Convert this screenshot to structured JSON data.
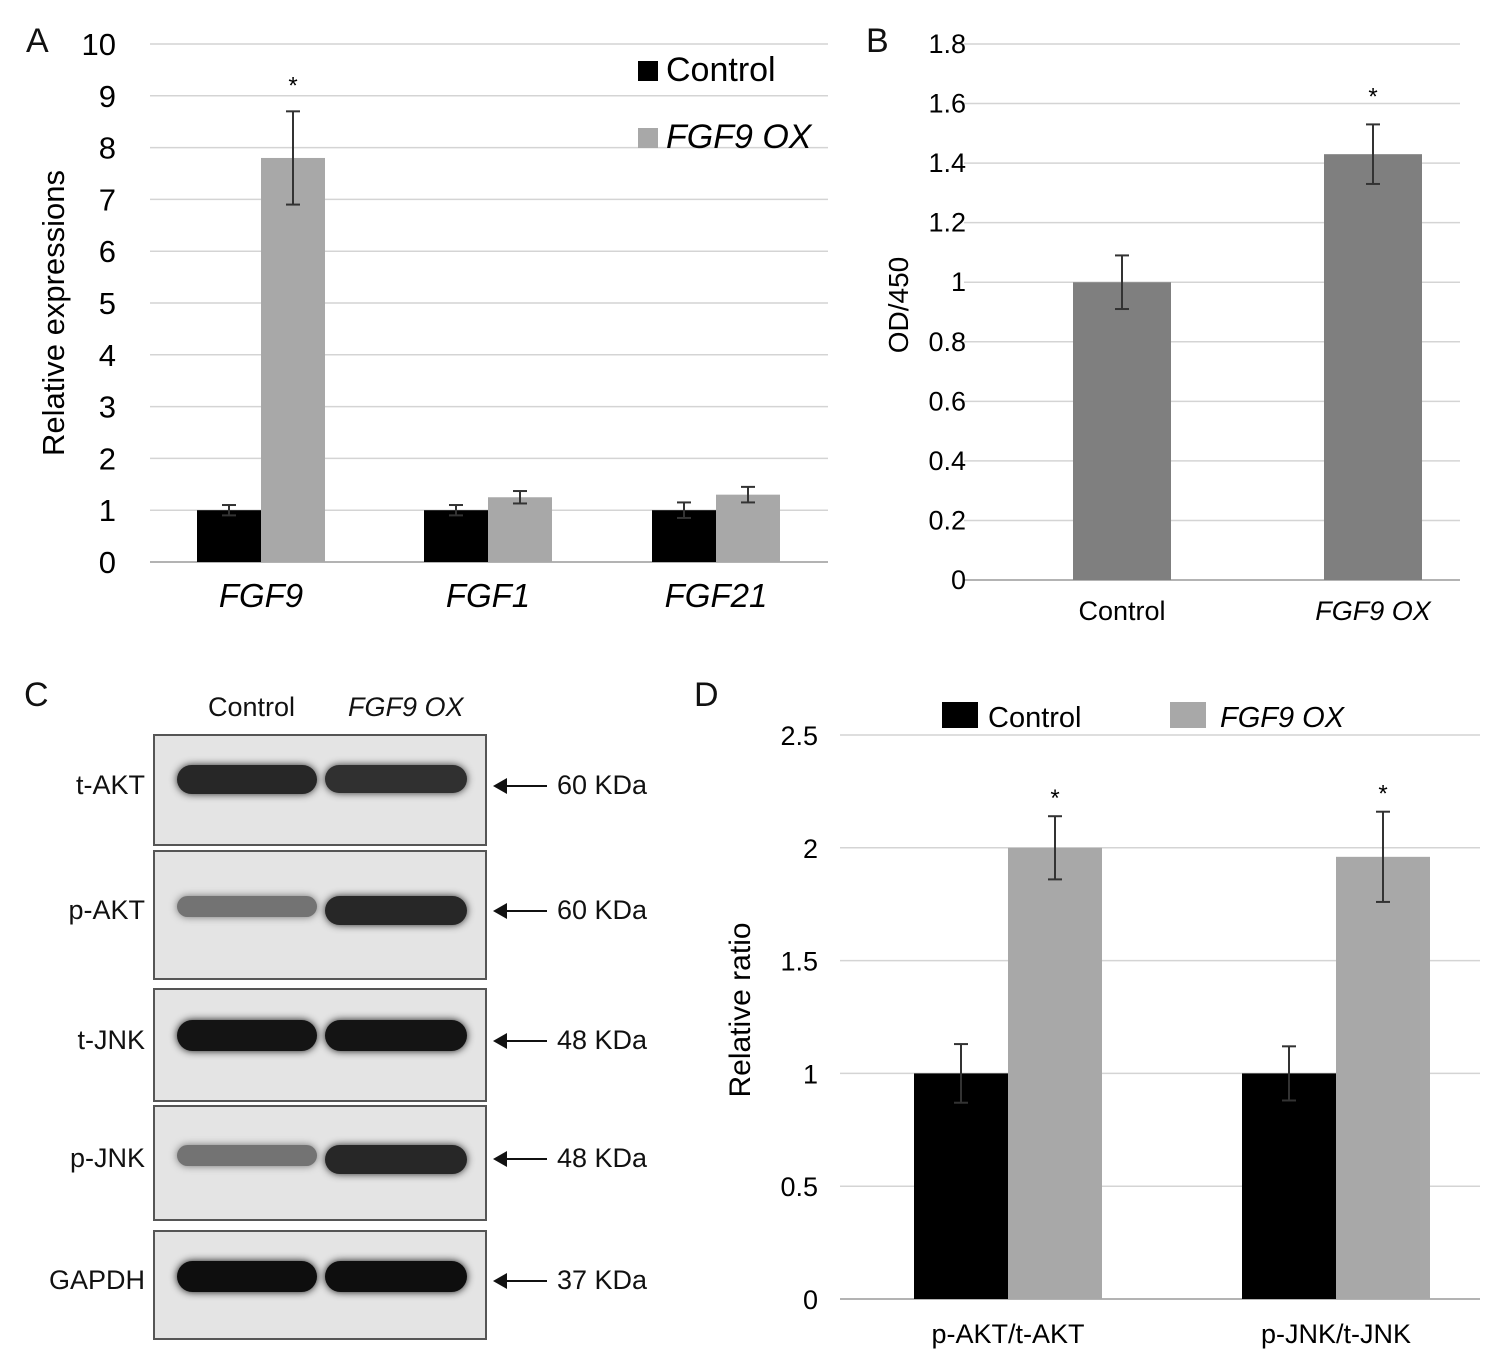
{
  "colors": {
    "control": "#000000",
    "ox": "#a8a8a8",
    "panel_b_bar": "#7f7f7f",
    "grid": "#d4d4d4",
    "error": "#333333"
  },
  "significance_marker": "*",
  "chart_data": [
    {
      "panel": "A",
      "type": "bar",
      "ylabel": "Relative  expressions",
      "ylim": [
        0,
        10
      ],
      "yticks": [
        "0",
        "1",
        "2",
        "3",
        "4",
        "5",
        "6",
        "7",
        "8",
        "9",
        "10"
      ],
      "categories": [
        "FGF9",
        "FGF1",
        "FGF21"
      ],
      "legend": {
        "placement": "top-right",
        "entries": [
          "Control",
          "FGF9 OX"
        ]
      },
      "series": [
        {
          "name": "Control",
          "values": [
            1.0,
            1.0,
            1.0
          ],
          "errors": [
            0.1,
            0.1,
            0.15
          ]
        },
        {
          "name": "FGF9 OX",
          "values": [
            7.8,
            1.25,
            1.3
          ],
          "errors": [
            0.9,
            0.12,
            0.15
          ]
        }
      ],
      "significance": [
        {
          "category": 0,
          "series": 1
        }
      ]
    },
    {
      "panel": "B",
      "type": "bar",
      "ylabel": "OD/450",
      "ylim": [
        0,
        1.8
      ],
      "yticks": [
        "0",
        "0.2",
        "0.4",
        "0.6",
        "0.8",
        "1",
        "1.2",
        "1.4",
        "1.6",
        "1.8"
      ],
      "categories": [
        "Control",
        "FGF9 OX"
      ],
      "values": [
        1.0,
        1.43
      ],
      "errors": [
        0.09,
        0.1
      ],
      "significance": [
        {
          "category": 1
        }
      ]
    },
    {
      "panel": "D",
      "type": "bar",
      "ylabel": "Relative  ratio",
      "ylim": [
        0,
        2.5
      ],
      "yticks": [
        "0",
        "0.5",
        "1",
        "1.5",
        "2",
        "2.5"
      ],
      "categories": [
        "p-AKT/t-AKT",
        "p-JNK/t-JNK"
      ],
      "legend": {
        "placement": "top",
        "entries": [
          "Control",
          "FGF9 OX"
        ]
      },
      "series": [
        {
          "name": "Control",
          "values": [
            1.0,
            1.0
          ],
          "errors": [
            0.13,
            0.12
          ]
        },
        {
          "name": "FGF9 OX",
          "values": [
            2.0,
            1.96
          ],
          "errors": [
            0.14,
            0.2
          ]
        }
      ],
      "significance": [
        {
          "category": 0,
          "series": 1
        },
        {
          "category": 1,
          "series": 1
        }
      ]
    }
  ],
  "panel_c": {
    "letter": "C",
    "columns": [
      "Control",
      "FGF9 OX"
    ],
    "blots": [
      {
        "label": "t-AKT",
        "size": "60 KDa",
        "control_intensity": 0.85,
        "ox_intensity": 0.8
      },
      {
        "label": "p-AKT",
        "size": "60 KDa",
        "control_intensity": 0.45,
        "ox_intensity": 0.85
      },
      {
        "label": "t-JNK",
        "size": "48 KDa",
        "control_intensity": 0.95,
        "ox_intensity": 0.95
      },
      {
        "label": "p-JNK",
        "size": "48 KDa",
        "control_intensity": 0.45,
        "ox_intensity": 0.85
      },
      {
        "label": "GAPDH",
        "size": "37 KDa",
        "control_intensity": 0.98,
        "ox_intensity": 0.98
      }
    ]
  }
}
